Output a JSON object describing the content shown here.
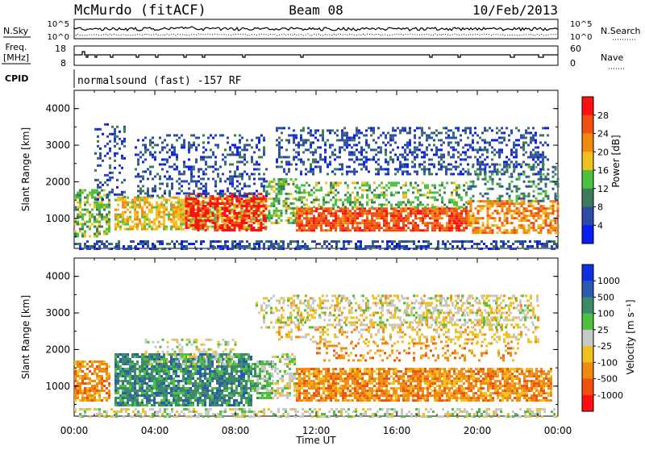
{
  "header": {
    "station": "McMurdo (fitACF)",
    "beam": "Beam 08",
    "date": "10/Feb/2013"
  },
  "status_panel": {
    "nsky_label": "N.Sky",
    "nsky_ticks": [
      "10^5",
      "10^0"
    ],
    "nsearch_label": "N.Search",
    "nsearch_ticks": [
      "10^5",
      "10^0"
    ],
    "freq_label_line1": "Freq.",
    "freq_label_line2": "[MHz]",
    "freq_ticks": [
      "18",
      "8"
    ],
    "nave_label": "Nave",
    "nave_ticks": [
      "60",
      "0"
    ],
    "cpid_label": "CPID",
    "cpid_text": "normalsound (fast) -157 RF"
  },
  "chart_data": [
    {
      "type": "heatmap",
      "name": "power",
      "ylabel": "Slant Range [km]",
      "yticks": [
        1000,
        2000,
        3000,
        4000
      ],
      "ylim": [
        180,
        4500
      ],
      "colorbar_label": "Power [dB]",
      "colorbar_ticks": [
        4,
        8,
        12,
        16,
        20,
        24,
        28
      ],
      "colorbar_colors": [
        "#0a1ef0",
        "#2c4ca8",
        "#3c7a5a",
        "#4cc040",
        "#f0c020",
        "#f08a10",
        "#f05010",
        "#ff1010"
      ],
      "scatter_regions": [
        {
          "t0": 0.0,
          "t1": 24.0,
          "r0": 200,
          "r1": 400,
          "level": 1,
          "density": 0.5
        },
        {
          "t0": 0.0,
          "t1": 1.8,
          "r0": 500,
          "r1": 1800,
          "level": 3,
          "density": 0.6
        },
        {
          "t0": 1.0,
          "t1": 2.5,
          "r0": 1500,
          "r1": 3600,
          "level": 1,
          "density": 0.25
        },
        {
          "t0": 2.0,
          "t1": 9.5,
          "r0": 700,
          "r1": 1600,
          "level": 4,
          "density": 0.7
        },
        {
          "t0": 5.5,
          "t1": 9.5,
          "r0": 700,
          "r1": 1700,
          "level": 7,
          "density": 0.55
        },
        {
          "t0": 3.0,
          "t1": 9.5,
          "r0": 1600,
          "r1": 3300,
          "level": 1,
          "density": 0.3
        },
        {
          "t0": 9.5,
          "t1": 11.0,
          "r0": 900,
          "r1": 2100,
          "level": 3,
          "density": 0.5
        },
        {
          "t0": 11.0,
          "t1": 19.5,
          "r0": 650,
          "r1": 1300,
          "level": 6,
          "density": 0.8
        },
        {
          "t0": 11.0,
          "t1": 19.5,
          "r0": 1300,
          "r1": 2000,
          "level": 3,
          "density": 0.4
        },
        {
          "t0": 10.0,
          "t1": 23.5,
          "r0": 2200,
          "r1": 3500,
          "level": 1,
          "density": 0.35
        },
        {
          "t0": 19.5,
          "t1": 24.0,
          "r0": 600,
          "r1": 1500,
          "level": 5,
          "density": 0.6
        },
        {
          "t0": 19.5,
          "t1": 24.0,
          "r0": 1500,
          "r1": 2500,
          "level": 2,
          "density": 0.3
        }
      ]
    },
    {
      "type": "heatmap",
      "name": "velocity",
      "ylabel": "Slant Range [km]",
      "yticks": [
        1000,
        2000,
        3000,
        4000
      ],
      "ylim": [
        180,
        4500
      ],
      "xlabel": "Time UT",
      "xticks": [
        "00:00",
        "04:00",
        "08:00",
        "12:00",
        "16:00",
        "20:00",
        "00:00"
      ],
      "xlim": [
        0,
        24
      ],
      "colorbar_label": "Velocity [m s⁻¹]",
      "colorbar_ticks": [
        1000,
        500,
        100,
        25,
        -25,
        -100,
        -500,
        -1000
      ],
      "colorbar_colors": [
        "#1030e0",
        "#2c5ab0",
        "#3c8a6a",
        "#50c040",
        "#c8c8c8",
        "#f0c020",
        "#f08a10",
        "#f05010",
        "#ff1010"
      ],
      "scatter_regions": [
        {
          "t0": 0.0,
          "t1": 24.0,
          "r0": 200,
          "r1": 400,
          "level": 4,
          "density": 0.45
        },
        {
          "t0": 0.0,
          "t1": 1.8,
          "r0": 600,
          "r1": 1700,
          "level": 6,
          "density": 0.7
        },
        {
          "t0": 2.0,
          "t1": 8.8,
          "r0": 500,
          "r1": 1900,
          "level": 2,
          "density": 0.8
        },
        {
          "t0": 3.5,
          "t1": 8.0,
          "r0": 1600,
          "r1": 2300,
          "level": 4,
          "density": 0.35
        },
        {
          "t0": 8.8,
          "t1": 9.8,
          "r0": 700,
          "r1": 1700,
          "level": 3,
          "density": 0.7
        },
        {
          "t0": 9.8,
          "t1": 11.0,
          "r0": 700,
          "r1": 1900,
          "level": 4,
          "density": 0.5
        },
        {
          "t0": 11.0,
          "t1": 23.7,
          "r0": 600,
          "r1": 1500,
          "level": 6,
          "density": 0.8
        },
        {
          "t0": 12.0,
          "t1": 22.0,
          "r0": 1700,
          "r1": 2200,
          "level": 6,
          "density": 0.25
        },
        {
          "t0": 10.0,
          "t1": 23.0,
          "r0": 2200,
          "r1": 3500,
          "level": 5,
          "density": 0.3
        },
        {
          "t0": 9.0,
          "t1": 23.0,
          "r0": 2600,
          "r1": 3500,
          "level": 4,
          "density": 0.25
        }
      ]
    }
  ]
}
